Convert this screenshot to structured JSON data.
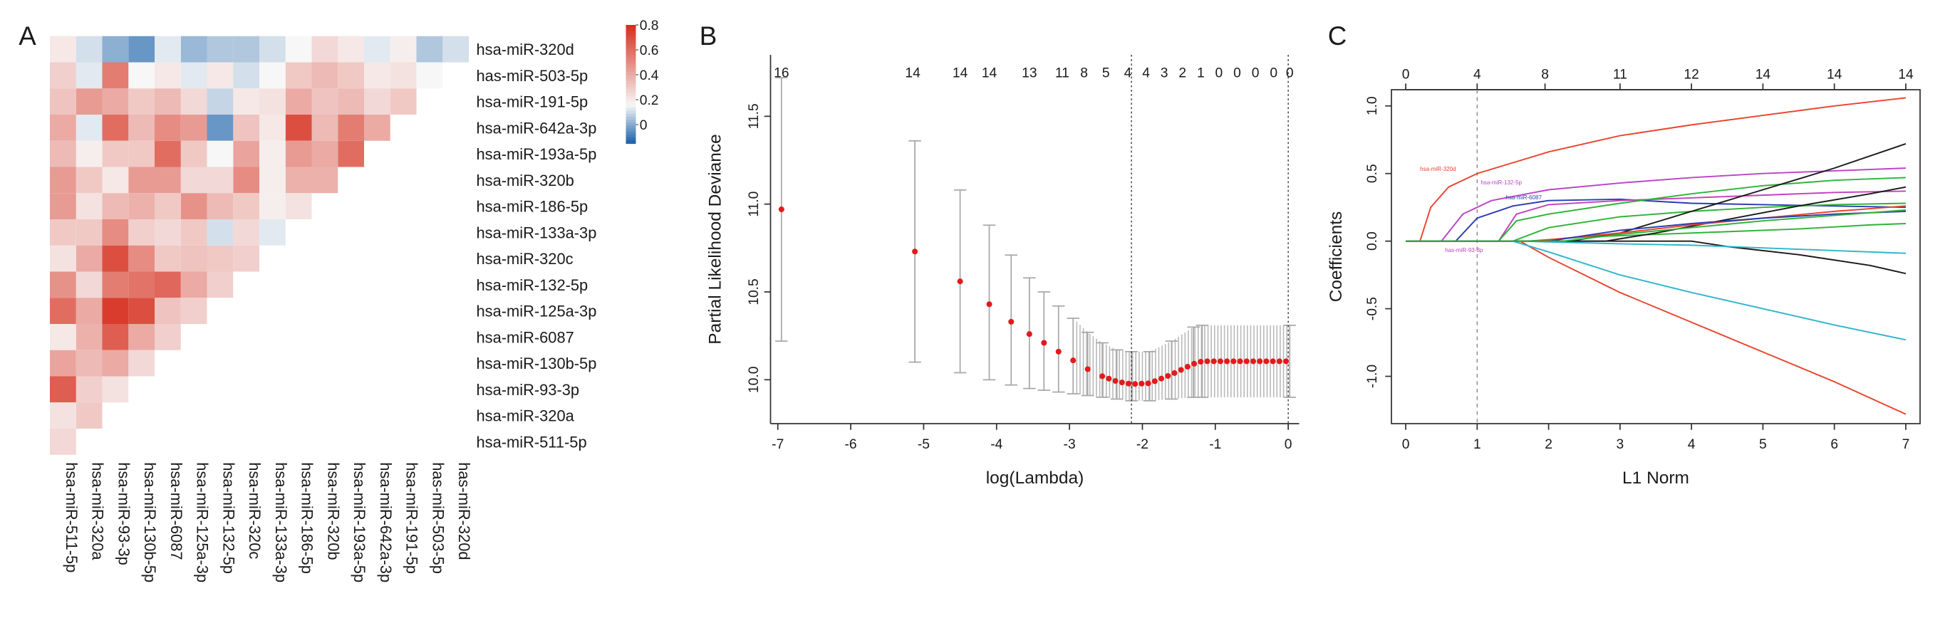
{
  "chart_data": [
    {
      "panel": "A",
      "type": "heatmap",
      "shape": "lower-triangle",
      "row_labels": [
        "hsa-miR-320d",
        "has-miR-503-5p",
        "hsa-miR-191-5p",
        "hsa-miR-642a-3p",
        "hsa-miR-193a-5p",
        "hsa-miR-320b",
        "hsa-miR-186-5p",
        "hsa-miR-133a-3p",
        "hsa-miR-320c",
        "hsa-miR-132-5p",
        "hsa-miR-125a-3p",
        "hsa-miR-6087",
        "hsa-miR-130b-5p",
        "hsa-miR-93-3p",
        "hsa-miR-320a",
        "hsa-miR-511-5p"
      ],
      "col_labels": [
        "hsa-miR-511-5p",
        "hsa-miR-320a",
        "hsa-miR-93-3p",
        "hsa-miR-130b-5p",
        "hsa-miR-6087",
        "hsa-miR-125a-3p",
        "hsa-miR-132-5p",
        "hsa-miR-320c",
        "hsa-miR-133a-3p",
        "hsa-miR-186-5p",
        "hsa-miR-320b",
        "hsa-miR-193a-5p",
        "hsa-miR-642a-3p",
        "hsa-miR-191-5p",
        "has-miR-503-5p",
        "has-miR-320d"
      ],
      "color_scale": {
        "min": -0.15,
        "max": 0.8,
        "low": "#2166ac",
        "mid": "#f7f7f7",
        "midpoint": 0.15,
        "high": "#d7301f",
        "ticks": [
          "0.8",
          "0.6",
          "0.4",
          "0.2",
          "0"
        ]
      },
      "values": [
        [
          0.1
        ],
        [
          0.05,
          0.15
        ],
        [
          0.18,
          0.22,
          0.3
        ],
        [
          0.12,
          0.2,
          0.25,
          0.4
        ],
        [
          0.2,
          0.3,
          0.35,
          0.55,
          0.6
        ],
        [
          0.25,
          0.35,
          0.32,
          0.35,
          0.4,
          0.38
        ],
        [
          0.15,
          0.3,
          0.4,
          0.7,
          0.45,
          0.38,
          0.22
        ],
        [
          0.1,
          0.15,
          0.22,
          0.2,
          0.18,
          0.18,
          0.18,
          0.12
        ],
        [
          0.05,
          0.1,
          0.2,
          0.32,
          0.42,
          0.5,
          0.3,
          0.25,
          0.28
        ],
        [
          0.05,
          0.2,
          0.08,
          -0.05,
          0.15,
          0.25,
          0.35,
          0.1,
          0.3,
          0.28
        ],
        [
          0.02,
          0.12,
          0.25,
          0.45,
          0.3,
          0.25,
          0.48,
          0.3,
          0.32,
          0.4,
          0.28
        ],
        [
          0.12,
          0.2,
          0.35,
          0.5,
          0.6,
          0.45,
          0.3,
          0.25,
          0.3,
          0.62,
          0.32,
          0.28
        ],
        [
          -0.05,
          0.15,
          0.3,
          0.35,
          0.3,
          0.45,
          0.38,
          0.28,
          0.5,
          0.58,
          0.7,
          0.4,
          0.25
        ],
        [
          0.0,
          0.55,
          0.4,
          0.6,
          0.3,
          0.2,
          0.35,
          0.5,
          0.7,
          0.55,
          0.76,
          0.65,
          0.4,
          0.22
        ],
        [
          0.1,
          0.12,
          0.45,
          0.12,
          0.18,
          0.3,
          0.22,
          0.3,
          0.4,
          0.25,
          0.4,
          0.38,
          0.35,
          0.28,
          0.3
        ],
        [
          0.2,
          0.28,
          0.32,
          0.4,
          0.35,
          0.45,
          0.45,
          0.3,
          0.22,
          0.48,
          0.6,
          0.2,
          0.42,
          0.65,
          0.22,
          0.25
        ]
      ]
    },
    {
      "panel": "B",
      "type": "scatter",
      "xlabel": "log(Lambda)",
      "ylabel": "Partial Likelihood Deviance",
      "xlim": [
        -7.1,
        0.15
      ],
      "ylim": [
        9.75,
        11.85
      ],
      "xticks": [
        "-7",
        "-6",
        "-5",
        "-4",
        "-3",
        "-2",
        "-1",
        "0"
      ],
      "yticks": [
        "10.0",
        "10.5",
        "11.0",
        "11.5"
      ],
      "top_axis_ticks": [
        {
          "x": -6.95,
          "label": "16"
        },
        {
          "x": -5.15,
          "label": "14"
        },
        {
          "x": -4.5,
          "label": "14"
        },
        {
          "x": -4.1,
          "label": "14"
        },
        {
          "x": -3.55,
          "label": "13"
        },
        {
          "x": -3.1,
          "label": "11"
        },
        {
          "x": -2.8,
          "label": "8"
        },
        {
          "x": -2.5,
          "label": "5"
        },
        {
          "x": -2.2,
          "label": "4"
        },
        {
          "x": -1.95,
          "label": "4"
        },
        {
          "x": -1.7,
          "label": "3"
        },
        {
          "x": -1.45,
          "label": "2"
        },
        {
          "x": -1.2,
          "label": "1"
        },
        {
          "x": -0.95,
          "label": "0"
        },
        {
          "x": -0.7,
          "label": "0"
        },
        {
          "x": -0.45,
          "label": "0"
        },
        {
          "x": -0.2,
          "label": "0"
        },
        {
          "x": 0.02,
          "label": "0"
        }
      ],
      "vlines": [
        -2.15,
        0.0
      ],
      "cv_curve": [
        {
          "x": -6.95,
          "y": 10.97,
          "lo": 10.22,
          "hi": 11.72
        },
        {
          "x": -5.12,
          "y": 10.73,
          "lo": 10.1,
          "hi": 11.36
        },
        {
          "x": -4.5,
          "y": 10.56,
          "lo": 10.04,
          "hi": 11.08
        },
        {
          "x": -4.1,
          "y": 10.43,
          "lo": 10.0,
          "hi": 10.88
        },
        {
          "x": -3.8,
          "y": 10.33,
          "lo": 9.97,
          "hi": 10.71
        },
        {
          "x": -3.55,
          "y": 10.26,
          "lo": 9.95,
          "hi": 10.58
        },
        {
          "x": -3.35,
          "y": 10.21,
          "lo": 9.94,
          "hi": 10.5
        },
        {
          "x": -3.15,
          "y": 10.16,
          "lo": 9.93,
          "hi": 10.42
        },
        {
          "x": -2.95,
          "y": 10.11,
          "lo": 9.92,
          "hi": 10.35
        },
        {
          "x": -2.75,
          "y": 10.06,
          "lo": 9.91,
          "hi": 10.27
        },
        {
          "x": -2.55,
          "y": 10.02,
          "lo": 9.9,
          "hi": 10.21
        },
        {
          "x": -2.35,
          "y": 9.99,
          "lo": 9.89,
          "hi": 10.17
        },
        {
          "x": -2.15,
          "y": 9.975,
          "lo": 9.88,
          "hi": 10.16
        },
        {
          "x": -1.9,
          "y": 9.98,
          "lo": 9.88,
          "hi": 10.16
        },
        {
          "x": -1.6,
          "y": 10.03,
          "lo": 9.89,
          "hi": 10.22
        },
        {
          "x": -1.3,
          "y": 10.09,
          "lo": 9.9,
          "hi": 10.3
        },
        {
          "x": -1.18,
          "y": 10.105,
          "lo": 9.9,
          "hi": 10.31
        },
        {
          "x": 0.02,
          "y": 10.105,
          "lo": 9.9,
          "hi": 10.31
        }
      ]
    },
    {
      "panel": "C",
      "type": "line",
      "xlabel": "L1 Norm",
      "ylabel": "Coefficients",
      "xlim": [
        -0.2,
        7.2
      ],
      "ylim": [
        -1.35,
        1.12
      ],
      "xticks": [
        "0",
        "1",
        "2",
        "3",
        "4",
        "5",
        "6",
        "7"
      ],
      "yticks": [
        "-1.0",
        "-0.5",
        "0.0",
        "0.5",
        "1.0"
      ],
      "top_axis_ticks": [
        {
          "x": 0.0,
          "label": "0"
        },
        {
          "x": 1.0,
          "label": "4"
        },
        {
          "x": 1.95,
          "label": "8"
        },
        {
          "x": 3.0,
          "label": "11"
        },
        {
          "x": 4.0,
          "label": "12"
        },
        {
          "x": 5.0,
          "label": "14"
        },
        {
          "x": 6.0,
          "label": "14"
        },
        {
          "x": 7.0,
          "label": "14"
        }
      ],
      "vline": 1.0,
      "series": [
        {
          "name": "hsa-miR-320d",
          "color": "#e8442d",
          "points": [
            [
              0.2,
              0
            ],
            [
              0.35,
              0.25
            ],
            [
              0.6,
              0.4
            ],
            [
              1.0,
              0.5
            ],
            [
              2.0,
              0.66
            ],
            [
              3.0,
              0.78
            ],
            [
              4.0,
              0.86
            ],
            [
              5.0,
              0.93
            ],
            [
              6.0,
              1.0
            ],
            [
              7.0,
              1.06
            ]
          ]
        },
        {
          "name": "hsa-miR-132-5p",
          "color": "#bb42c8",
          "points": [
            [
              0.5,
              0
            ],
            [
              0.8,
              0.2
            ],
            [
              1.2,
              0.3
            ],
            [
              2.0,
              0.38
            ],
            [
              3.0,
              0.43
            ],
            [
              4.0,
              0.47
            ],
            [
              5.0,
              0.5
            ],
            [
              6.0,
              0.52
            ],
            [
              7.0,
              0.54
            ]
          ]
        },
        {
          "name": "hsa-miR-6087",
          "color": "#2b3bb5",
          "points": [
            [
              0.7,
              0
            ],
            [
              1.0,
              0.17
            ],
            [
              1.5,
              0.26
            ],
            [
              2.0,
              0.3
            ],
            [
              3.0,
              0.31
            ],
            [
              4.0,
              0.28
            ],
            [
              5.0,
              0.27
            ],
            [
              6.0,
              0.26
            ],
            [
              7.0,
              0.25
            ]
          ]
        },
        {
          "name": "has-miR-93-3p",
          "color": "#c33fbf",
          "points": [
            [
              1.3,
              0
            ],
            [
              1.55,
              0.2
            ],
            [
              2.0,
              0.27
            ],
            [
              3.0,
              0.3
            ],
            [
              4.0,
              0.32
            ],
            [
              5.0,
              0.34
            ],
            [
              6.0,
              0.36
            ],
            [
              7.0,
              0.37
            ]
          ]
        },
        {
          "name": "",
          "color": "#2db336",
          "points": [
            [
              1.3,
              0
            ],
            [
              1.55,
              0.15
            ],
            [
              2.0,
              0.2
            ],
            [
              3.0,
              0.28
            ],
            [
              4.0,
              0.35
            ],
            [
              5.0,
              0.41
            ],
            [
              6.0,
              0.45
            ],
            [
              7.0,
              0.47
            ]
          ]
        },
        {
          "name": "",
          "color": "#2db336",
          "points": [
            [
              1.7,
              0
            ],
            [
              2.5,
              0.03
            ],
            [
              3.5,
              0.05
            ],
            [
              4.5,
              0.07
            ],
            [
              5.5,
              0.09
            ],
            [
              6.5,
              0.12
            ],
            [
              7.0,
              0.13
            ]
          ]
        },
        {
          "name": "",
          "color": "#2db336",
          "points": [
            [
              1.5,
              0
            ],
            [
              2.0,
              0.1
            ],
            [
              3.0,
              0.18
            ],
            [
              4.0,
              0.22
            ],
            [
              5.0,
              0.25
            ],
            [
              6.0,
              0.27
            ],
            [
              7.0,
              0.28
            ]
          ]
        },
        {
          "name": "",
          "color": "#1a1a1a",
          "points": [
            [
              2.3,
              0
            ],
            [
              3.0,
              0.06
            ],
            [
              4.0,
              0.22
            ],
            [
              5.0,
              0.38
            ],
            [
              6.0,
              0.54
            ],
            [
              7.0,
              0.72
            ]
          ]
        },
        {
          "name": "",
          "color": "#1a1a1a",
          "points": [
            [
              2.8,
              0
            ],
            [
              3.5,
              0.06
            ],
            [
              4.5,
              0.16
            ],
            [
              5.5,
              0.26
            ],
            [
              6.5,
              0.35
            ],
            [
              7.0,
              0.4
            ]
          ]
        },
        {
          "name": "",
          "color": "#1a1a1a",
          "points": [
            [
              4.0,
              0
            ],
            [
              4.5,
              -0.04
            ],
            [
              5.5,
              -0.1
            ],
            [
              6.5,
              -0.18
            ],
            [
              7.0,
              -0.24
            ]
          ]
        },
        {
          "name": "",
          "color": "#e8442d",
          "points": [
            [
              1.6,
              0
            ],
            [
              2.0,
              -0.12
            ],
            [
              3.0,
              -0.38
            ],
            [
              4.0,
              -0.6
            ],
            [
              5.0,
              -0.82
            ],
            [
              6.0,
              -1.04
            ],
            [
              7.0,
              -1.28
            ]
          ]
        },
        {
          "name": "",
          "color": "#2fb5cc",
          "points": [
            [
              1.5,
              0
            ],
            [
              2.0,
              -0.08
            ],
            [
              3.0,
              -0.25
            ],
            [
              4.0,
              -0.38
            ],
            [
              5.0,
              -0.5
            ],
            [
              6.0,
              -0.62
            ],
            [
              7.0,
              -0.73
            ]
          ]
        },
        {
          "name": "",
          "color": "#2fb5cc",
          "points": [
            [
              1.6,
              0
            ],
            [
              3.0,
              -0.02
            ],
            [
              4.0,
              -0.03
            ],
            [
              5.0,
              -0.05
            ],
            [
              6.0,
              -0.07
            ],
            [
              7.0,
              -0.09
            ]
          ]
        },
        {
          "name": "",
          "color": "#e8442d",
          "points": [
            [
              1.8,
              0
            ],
            [
              3.0,
              0.06
            ],
            [
              4.0,
              0.12
            ],
            [
              5.0,
              0.17
            ],
            [
              6.0,
              0.22
            ],
            [
              7.0,
              0.26
            ]
          ]
        },
        {
          "name": "",
          "color": "#2b3bb5",
          "points": [
            [
              2.0,
              0
            ],
            [
              3.0,
              0.08
            ],
            [
              4.0,
              0.13
            ],
            [
              5.0,
              0.17
            ],
            [
              6.0,
              0.2
            ],
            [
              7.0,
              0.22
            ]
          ]
        },
        {
          "name": "",
          "color": "#2db336",
          "points": [
            [
              2.2,
              0
            ],
            [
              3.0,
              0.05
            ],
            [
              4.0,
              0.1
            ],
            [
              5.0,
              0.15
            ],
            [
              6.0,
              0.19
            ],
            [
              7.0,
              0.23
            ]
          ]
        }
      ]
    }
  ],
  "panels": {
    "a": {
      "letter": "A"
    },
    "b": {
      "letter": "B"
    },
    "c": {
      "letter": "C"
    }
  }
}
